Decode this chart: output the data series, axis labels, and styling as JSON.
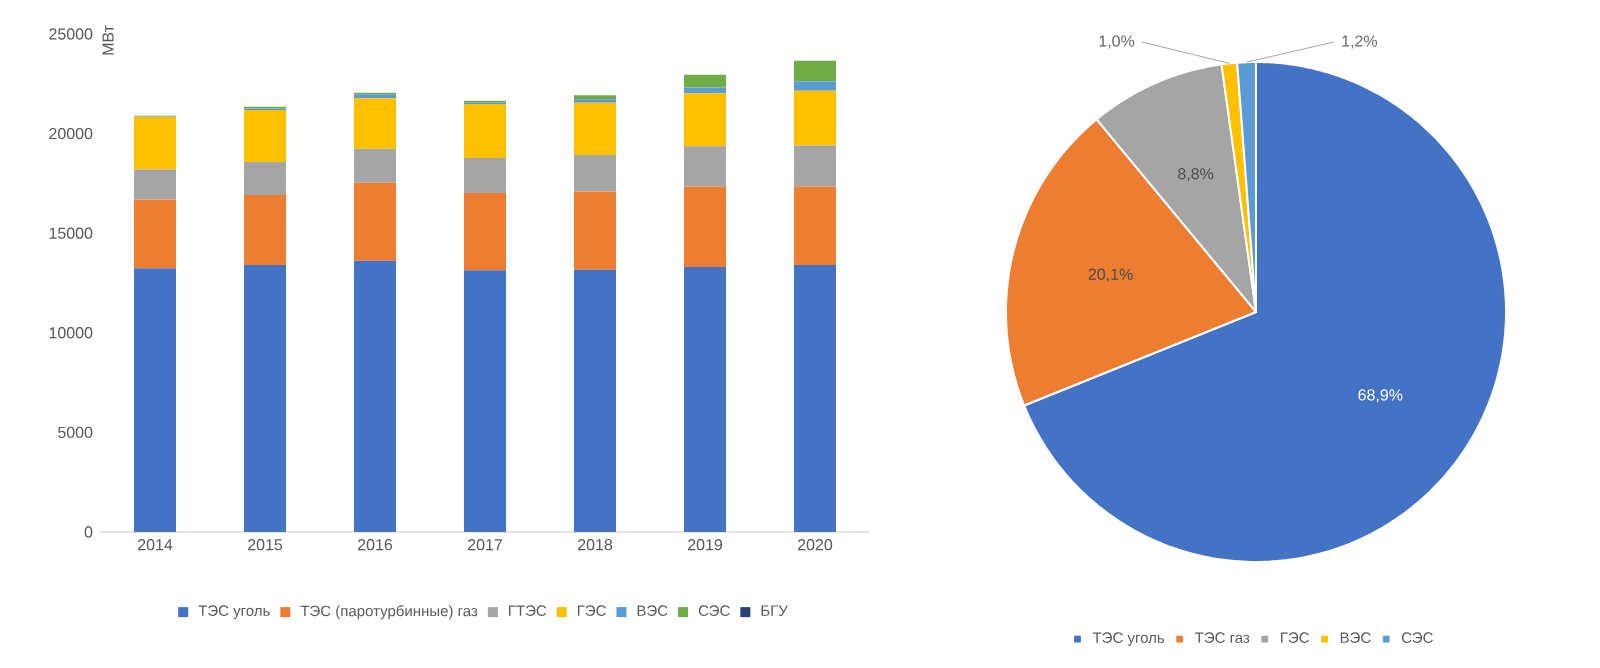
{
  "chart_data": [
    {
      "type": "bar",
      "stacked": true,
      "ylabel": "МВт",
      "categories": [
        "2014",
        "2015",
        "2016",
        "2017",
        "2018",
        "2019",
        "2020"
      ],
      "ylim": [
        0,
        25000
      ],
      "yticks": [
        0,
        5000,
        10000,
        15000,
        20000,
        25000
      ],
      "legend": "bottom",
      "series": [
        {
          "name": "ТЭС уголь",
          "color": "#4472c4",
          "values": [
            13240,
            13400,
            13610,
            13140,
            13170,
            13300,
            13400
          ]
        },
        {
          "name": "ТЭС (паротурбинные) газ",
          "color": "#ed7d31",
          "values": [
            3450,
            3520,
            3920,
            3880,
            3920,
            4030,
            3930
          ]
        },
        {
          "name": "ГТЭС",
          "color": "#a5a5a5",
          "values": [
            1510,
            1650,
            1710,
            1750,
            1840,
            2040,
            2070
          ]
        },
        {
          "name": "ГЭС",
          "color": "#ffc000",
          "values": [
            2640,
            2610,
            2540,
            2710,
            2620,
            2650,
            2750
          ]
        },
        {
          "name": "ВЭС",
          "color": "#5b9bd5",
          "values": [
            40,
            80,
            200,
            90,
            170,
            300,
            470
          ]
        },
        {
          "name": "СЭС",
          "color": "#70ad47",
          "values": [
            20,
            90,
            70,
            80,
            200,
            640,
            1040
          ]
        },
        {
          "name": "БГУ",
          "color": "#264478",
          "values": [
            null,
            null,
            null,
            null,
            null,
            null,
            null
          ]
        }
      ]
    },
    {
      "type": "pie",
      "legend": "bottom",
      "categories": [
        "ТЭС уголь",
        "ТЭС газ",
        "ГЭС",
        "ВЭС",
        "СЭС"
      ],
      "values": [
        68.9,
        20.1,
        8.8,
        1.0,
        1.2
      ],
      "colors": [
        "#4472c4",
        "#ed7d31",
        "#a5a5a5",
        "#ffc000",
        "#5b9bd5"
      ],
      "value_labels": [
        "68,9%",
        "20,1%",
        "8,8%",
        "1,0%",
        "1,2%"
      ]
    }
  ]
}
